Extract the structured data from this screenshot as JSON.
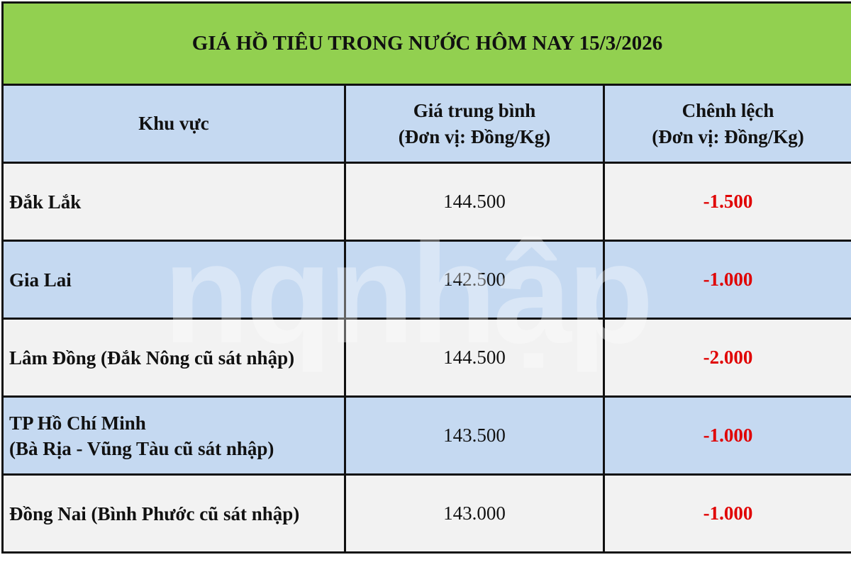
{
  "title": "GIÁ HỒ TIÊU TRONG NƯỚC HÔM NAY 15/3/2026",
  "headers": {
    "region": "Khu vực",
    "price_line1": "Giá trung bình",
    "price_line2": "(Đơn vị: Đồng/Kg)",
    "diff_line1": "Chênh lệch",
    "diff_line2": "(Đơn vị: Đồng/Kg)"
  },
  "rows": [
    {
      "region": "Đắk Lắk",
      "region2": "",
      "price": "144.500",
      "diff": "-1.500"
    },
    {
      "region": "Gia Lai",
      "region2": "",
      "price": "142.500",
      "diff": "-1.000"
    },
    {
      "region": "Lâm Đồng (Đắk Nông cũ sát nhập)",
      "region2": "",
      "price": "144.500",
      "diff": "-2.000"
    },
    {
      "region": "TP Hồ Chí Minh",
      "region2": "(Bà Rịa - Vũng Tàu cũ sát nhập)",
      "price": "143.500",
      "diff": "-1.000"
    },
    {
      "region": "Đồng Nai (Bình Phước cũ sát nhập)",
      "region2": "",
      "price": "143.000",
      "diff": "-1.000"
    }
  ],
  "watermark": "TẠP CHÍ ngnhập",
  "colors": {
    "title_bg": "#92D050",
    "header_bg": "#C5D9F1",
    "row_gray": "#F2F2F2",
    "negative": "#E00000"
  }
}
